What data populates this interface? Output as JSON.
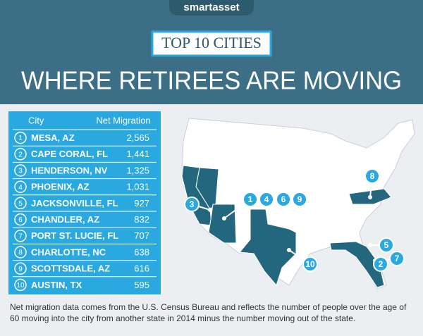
{
  "header": {
    "logo": "smartasset",
    "badge": "TOP 10 CITIES",
    "title": "WHERE RETIREES ARE MOVING"
  },
  "table": {
    "columns": [
      "City",
      "Net Migration"
    ],
    "rows": [
      [
        1,
        "MESA, AZ",
        "2,565"
      ],
      [
        2,
        "CAPE CORAL, FL",
        "1,441"
      ],
      [
        3,
        "HENDERSON, NV",
        "1,325"
      ],
      [
        4,
        "PHOENIX, AZ",
        "1,031"
      ],
      [
        5,
        "JACKSONVILLE, FL",
        "927"
      ],
      [
        6,
        "CHANDLER, AZ",
        "832"
      ],
      [
        7,
        "PORT ST. LUCIE, FL",
        "707"
      ],
      [
        8,
        "CHARLOTTE, NC",
        "638"
      ],
      [
        9,
        "SCOTTSDALE, AZ",
        "616"
      ],
      [
        10,
        "AUSTIN, TX",
        "595"
      ]
    ]
  },
  "map_markers": [
    3,
    1,
    4,
    6,
    9,
    8,
    10,
    5,
    2,
    7
  ],
  "footnote": "Net migration data comes from the U.S. Census Bureau and reflects the number of people over the age of 60 moving into the city from another state in 2014 minus the number moving out of the state."
}
